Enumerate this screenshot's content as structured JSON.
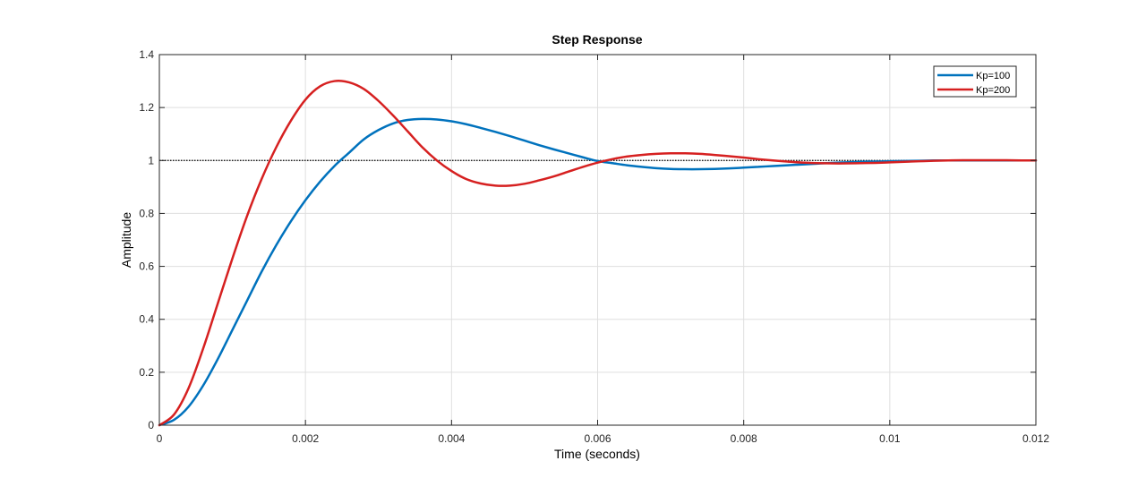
{
  "chart_data": {
    "type": "line",
    "title": "Step Response",
    "xlabel": "Time (seconds)",
    "ylabel": "Amplitude",
    "xlim": [
      0,
      0.012
    ],
    "ylim": [
      0,
      1.4
    ],
    "xticks": [
      0,
      0.002,
      0.004,
      0.006,
      0.008,
      0.01,
      0.012
    ],
    "xtick_labels": [
      "0",
      "0.002",
      "0.004",
      "0.006",
      "0.008",
      "0.01",
      "0.012"
    ],
    "yticks": [
      0,
      0.2,
      0.4,
      0.6,
      0.8,
      1,
      1.2,
      1.4
    ],
    "ytick_labels": [
      "0",
      "0.2",
      "0.4",
      "0.6",
      "0.8",
      "1",
      "1.2",
      "1.4"
    ],
    "grid": true,
    "legend_position": "top-right",
    "reference_line": {
      "y": 1,
      "style": "dotted",
      "color": "#000000"
    },
    "series": [
      {
        "name": "Kp=100",
        "color": "#0072BD",
        "x": [
          0,
          0.0002,
          0.0004,
          0.0006,
          0.0008,
          0.001,
          0.0012,
          0.0014,
          0.0016,
          0.0018,
          0.002,
          0.0022,
          0.0024,
          0.0026,
          0.0028,
          0.003,
          0.0032,
          0.0034,
          0.0036,
          0.0038,
          0.004,
          0.0042,
          0.0044,
          0.0046,
          0.0048,
          0.005,
          0.0052,
          0.0054,
          0.0056,
          0.0058,
          0.006,
          0.0062,
          0.0064,
          0.0066,
          0.0068,
          0.007,
          0.0072,
          0.0074,
          0.0076,
          0.0078,
          0.008,
          0.0082,
          0.0084,
          0.0086,
          0.0088,
          0.009,
          0.0092,
          0.0094,
          0.0096,
          0.0098,
          0.01,
          0.0102,
          0.0104,
          0.0106,
          0.0108,
          0.011,
          0.0112,
          0.0114,
          0.0116,
          0.0118,
          0.012
        ],
        "y": [
          0,
          0.02,
          0.07,
          0.15,
          0.25,
          0.36,
          0.47,
          0.58,
          0.68,
          0.77,
          0.85,
          0.92,
          0.98,
          1.03,
          1.08,
          1.115,
          1.14,
          1.153,
          1.157,
          1.155,
          1.148,
          1.137,
          1.123,
          1.108,
          1.092,
          1.075,
          1.058,
          1.042,
          1.027,
          1.012,
          0.998,
          0.99,
          0.982,
          0.976,
          0.971,
          0.968,
          0.967,
          0.967,
          0.968,
          0.97,
          0.973,
          0.976,
          0.979,
          0.982,
          0.985,
          0.988,
          0.991,
          0.993,
          0.995,
          0.996,
          0.997,
          0.998,
          0.999,
          1.0,
          1.0,
          1.0,
          1.0,
          1.0,
          1.0,
          1.0,
          1.0
        ]
      },
      {
        "name": "Kp=200",
        "color": "#D62020",
        "x": [
          0,
          0.0002,
          0.0004,
          0.0006,
          0.0008,
          0.001,
          0.0012,
          0.0014,
          0.0016,
          0.0018,
          0.002,
          0.0022,
          0.0024,
          0.0026,
          0.0028,
          0.003,
          0.0032,
          0.0034,
          0.0036,
          0.0038,
          0.004,
          0.0042,
          0.0044,
          0.0046,
          0.0048,
          0.005,
          0.0052,
          0.0054,
          0.0056,
          0.0058,
          0.006,
          0.0062,
          0.0064,
          0.0066,
          0.0068,
          0.007,
          0.0072,
          0.0074,
          0.0076,
          0.0078,
          0.008,
          0.0082,
          0.0084,
          0.0086,
          0.0088,
          0.009,
          0.0092,
          0.0094,
          0.0096,
          0.0098,
          0.01,
          0.0102,
          0.0104,
          0.0106,
          0.0108,
          0.011,
          0.0112,
          0.0114,
          0.0116,
          0.0118,
          0.012
        ],
        "y": [
          0,
          0.04,
          0.14,
          0.29,
          0.46,
          0.63,
          0.79,
          0.93,
          1.05,
          1.15,
          1.23,
          1.28,
          1.3,
          1.295,
          1.27,
          1.225,
          1.17,
          1.11,
          1.05,
          1.0,
          0.96,
          0.93,
          0.913,
          0.905,
          0.905,
          0.912,
          0.925,
          0.94,
          0.958,
          0.976,
          0.992,
          1.005,
          1.015,
          1.021,
          1.025,
          1.027,
          1.027,
          1.025,
          1.021,
          1.016,
          1.011,
          1.005,
          1.0,
          0.996,
          0.992,
          0.99,
          0.989,
          0.989,
          0.99,
          0.991,
          0.993,
          0.995,
          0.997,
          0.999,
          1.0,
          1.001,
          1.001,
          1.001,
          1.001,
          1.0,
          1.0
        ]
      }
    ]
  }
}
